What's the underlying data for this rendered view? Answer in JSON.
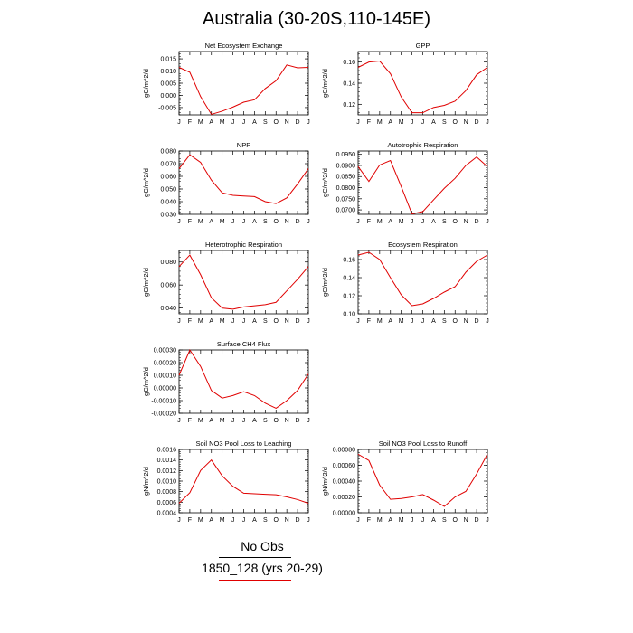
{
  "title": "Australia (30-20S,110-145E)",
  "legend": {
    "obs_label": "No Obs",
    "case_label": "1850_128 (yrs 20-29)",
    "case_color": "#e00000",
    "obs_color": "#000000"
  },
  "months": [
    "J",
    "F",
    "M",
    "A",
    "M",
    "J",
    "J",
    "A",
    "S",
    "O",
    "N",
    "D",
    "J"
  ],
  "chart_data": [
    {
      "type": "line",
      "title": "Net Ecosystem Exchange",
      "ylabel": "gC/m^2/d",
      "ylim": [
        -0.008,
        0.018
      ],
      "yticks": [
        -0.005,
        0.0,
        0.005,
        0.01,
        0.015
      ],
      "yticklabels": [
        "-0.005",
        "0.000",
        "0.005",
        "0.010",
        "0.015"
      ],
      "values": [
        0.0115,
        0.0095,
        -0.0005,
        -0.0078,
        -0.0065,
        -0.0048,
        -0.0028,
        -0.0018,
        0.0028,
        0.006,
        0.0125,
        0.0113,
        0.0115
      ]
    },
    {
      "type": "line",
      "title": "GPP",
      "ylabel": "gC/m^2/d",
      "ylim": [
        0.11,
        0.17
      ],
      "yticks": [
        0.12,
        0.14,
        0.16
      ],
      "yticklabels": [
        "0.12",
        "0.14",
        "0.16"
      ],
      "values": [
        0.155,
        0.16,
        0.161,
        0.149,
        0.127,
        0.112,
        0.112,
        0.117,
        0.119,
        0.123,
        0.133,
        0.148,
        0.155
      ]
    },
    {
      "type": "line",
      "title": "NPP",
      "ylabel": "gC/m^2/d",
      "ylim": [
        0.03,
        0.08
      ],
      "yticks": [
        0.03,
        0.04,
        0.05,
        0.06,
        0.07,
        0.08
      ],
      "yticklabels": [
        "0.030",
        "0.040",
        "0.050",
        "0.060",
        "0.070",
        "0.080"
      ],
      "values": [
        0.066,
        0.077,
        0.071,
        0.057,
        0.047,
        0.045,
        0.0445,
        0.044,
        0.04,
        0.0385,
        0.043,
        0.054,
        0.066
      ]
    },
    {
      "type": "line",
      "title": "Autotrophic Respiration",
      "ylabel": "gC/m^2/d",
      "ylim": [
        0.068,
        0.0965
      ],
      "yticks": [
        0.07,
        0.075,
        0.08,
        0.085,
        0.09,
        0.095
      ],
      "yticklabels": [
        "0.0700",
        "0.0750",
        "0.0800",
        "0.0850",
        "0.0900",
        "0.0950"
      ],
      "values": [
        0.0895,
        0.0828,
        0.0902,
        0.0922,
        0.0805,
        0.0682,
        0.0692,
        0.0745,
        0.0797,
        0.0842,
        0.09,
        0.0938,
        0.0895
      ]
    },
    {
      "type": "line",
      "title": "Heterotrophic Respiration",
      "ylabel": "gC/m^2/d",
      "ylim": [
        0.035,
        0.09
      ],
      "yticks": [
        0.04,
        0.06,
        0.08
      ],
      "yticklabels": [
        "0.040",
        "0.060",
        "0.080"
      ],
      "values": [
        0.076,
        0.086,
        0.069,
        0.049,
        0.04,
        0.039,
        0.041,
        0.042,
        0.043,
        0.045,
        0.055,
        0.065,
        0.076
      ]
    },
    {
      "type": "line",
      "title": "Ecosystem Respiration",
      "ylabel": "gC/m^2/d",
      "ylim": [
        0.1,
        0.17
      ],
      "yticks": [
        0.1,
        0.12,
        0.14,
        0.16
      ],
      "yticklabels": [
        "0.10",
        "0.12",
        "0.14",
        "0.16"
      ],
      "values": [
        0.165,
        0.168,
        0.16,
        0.14,
        0.121,
        0.109,
        0.111,
        0.117,
        0.124,
        0.13,
        0.146,
        0.158,
        0.165
      ]
    },
    {
      "type": "line",
      "title": "Surface CH4 Flux",
      "ylabel": "gC/m^2/d",
      "ylim": [
        -0.0002,
        0.0003
      ],
      "yticks": [
        -0.0002,
        -0.0001,
        0.0,
        0.0001,
        0.0002,
        0.0003
      ],
      "yticklabels": [
        "-0.00020",
        "-0.00010",
        "0.00000",
        "0.00010",
        "0.00020",
        "0.00030"
      ],
      "values": [
        0.0001,
        0.0003,
        0.00017,
        -2e-05,
        -8e-05,
        -6e-05,
        -3e-05,
        -6e-05,
        -0.00012,
        -0.00016,
        -0.0001,
        -2e-05,
        0.00011
      ]
    },
    null,
    {
      "type": "line",
      "title": "Soil NO3 Pool Loss to Leaching",
      "ylabel": "gN/m^2/d",
      "ylim": [
        0.0004,
        0.0016
      ],
      "yticks": [
        0.0004,
        0.0006,
        0.0008,
        0.001,
        0.0012,
        0.0014,
        0.0016
      ],
      "yticklabels": [
        "0.0004",
        "0.0006",
        "0.0008",
        "0.0010",
        "0.0012",
        "0.0014",
        "0.0016"
      ],
      "values": [
        0.00058,
        0.00078,
        0.0012,
        0.0014,
        0.0011,
        0.0009,
        0.00077,
        0.00076,
        0.00075,
        0.00074,
        0.0007,
        0.00065,
        0.00058
      ]
    },
    {
      "type": "line",
      "title": "Soil NO3 Pool Loss to Runoff",
      "ylabel": "gN/m^2/d",
      "ylim": [
        0.0,
        0.0008
      ],
      "yticks": [
        0.0,
        0.0002,
        0.0004,
        0.0006,
        0.0008
      ],
      "yticklabels": [
        "0.00000",
        "0.00020",
        "0.00040",
        "0.00060",
        "0.00080"
      ],
      "values": [
        0.00074,
        0.00066,
        0.00035,
        0.00017,
        0.00018,
        0.0002,
        0.00023,
        0.00016,
        8e-05,
        0.0002,
        0.00027,
        0.00049,
        0.00074
      ]
    }
  ]
}
